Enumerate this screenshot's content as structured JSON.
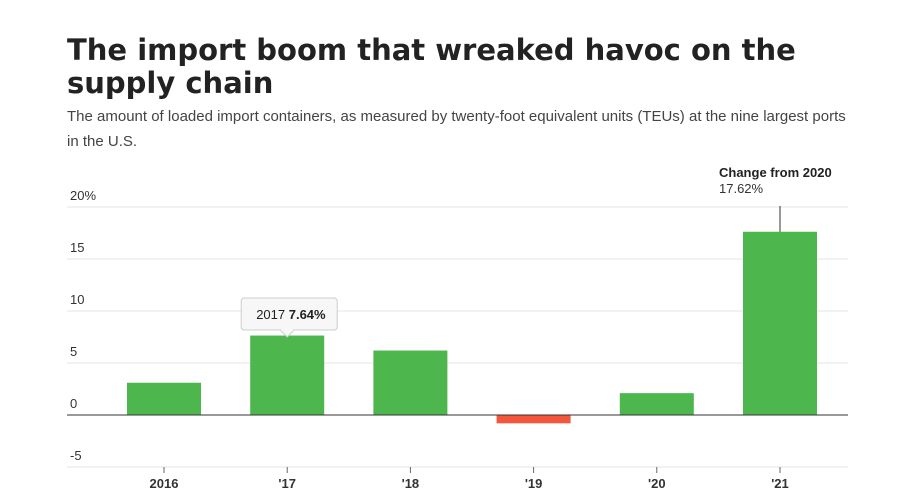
{
  "header": {
    "title": "The import boom that wreaked havoc on the supply chain",
    "subtitle": "The amount of loaded import containers, as measured by twenty-foot equivalent units (TEUs) at the nine largest ports in the U.S."
  },
  "chart_data": {
    "type": "bar",
    "categories": [
      "2016",
      "'17",
      "'18",
      "'19",
      "'20",
      "'21"
    ],
    "values": [
      3.1,
      7.64,
      6.2,
      -0.8,
      2.1,
      17.62
    ],
    "ylim": [
      -5,
      20
    ],
    "y_ticks": [
      20,
      15,
      10,
      5,
      0,
      -5
    ],
    "y_tick_labels": [
      "20%",
      "15",
      "10",
      "5",
      "0",
      "-5"
    ],
    "grid": true,
    "colors": {
      "positive": "#4db64d",
      "negative": "#f4553b",
      "grid": "#e6e6e6",
      "zero_line": "#333333"
    },
    "annotation": {
      "category_index": 5,
      "title": "Change from 2020",
      "value_text": "17.62%"
    },
    "tooltip": {
      "category_index": 1,
      "label": "2017",
      "value_text": "7.64%"
    }
  }
}
